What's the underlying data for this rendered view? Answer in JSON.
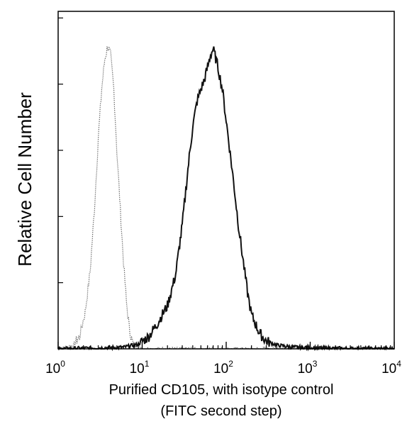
{
  "chart_data": {
    "type": "line",
    "xscale": "log",
    "xlim": [
      1,
      10000
    ],
    "ylim": [
      0,
      100
    ],
    "ylabel": "Relative Cell Number",
    "xlabel_line1": "Purified CD105, with isotype control",
    "xlabel_line2": "(FITC second step)",
    "x_ticks": [
      {
        "base": "10",
        "exp": "0",
        "value": 1
      },
      {
        "base": "10",
        "exp": "1",
        "value": 10
      },
      {
        "base": "10",
        "exp": "2",
        "value": 100
      },
      {
        "base": "10",
        "exp": "3",
        "value": 1000
      },
      {
        "base": "10",
        "exp": "4",
        "value": 10000
      }
    ],
    "legend": "none",
    "grid": false,
    "series": [
      {
        "role": "isotype-control",
        "style": "dotted",
        "color": "#555555",
        "x": [
          1,
          1.5,
          1.8,
          2.1,
          2.4,
          2.7,
          3.0,
          3.3,
          3.6,
          3.9,
          4.2,
          4.6,
          5.0,
          5.5,
          6.0,
          6.5,
          7.0,
          7.5,
          8.0,
          9.0,
          10,
          20,
          100,
          10000
        ],
        "y": [
          0,
          1,
          4,
          12,
          25,
          45,
          68,
          84,
          94,
          98,
          95,
          84,
          64,
          45,
          28,
          15,
          7,
          3,
          1,
          0.5,
          0,
          0,
          0,
          0
        ]
      },
      {
        "role": "CD105",
        "style": "solid",
        "color": "#111111",
        "x": [
          1,
          6,
          9,
          12,
          15,
          20,
          25,
          30,
          35,
          40,
          45,
          50,
          55,
          60,
          65,
          70,
          75,
          80,
          90,
          100,
          120,
          140,
          160,
          180,
          200,
          250,
          300,
          400,
          600,
          1000,
          3000,
          10000
        ],
        "y": [
          0,
          0.5,
          1.5,
          4,
          8,
          14,
          24,
          40,
          58,
          72,
          80,
          84,
          87,
          91,
          95,
          97,
          94,
          91,
          84,
          74,
          56,
          40,
          28,
          18,
          11,
          5,
          2.5,
          1.2,
          0.6,
          0.3,
          0.1,
          0
        ]
      }
    ]
  }
}
